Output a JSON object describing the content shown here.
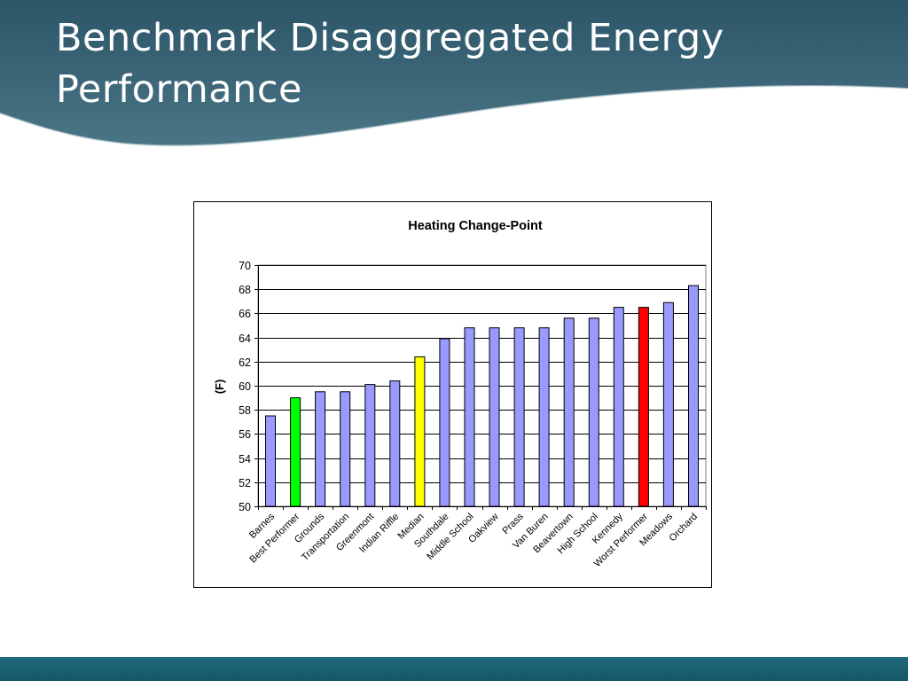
{
  "slide": {
    "title": "Benchmark Disaggregated Energy Performance",
    "colors": {
      "header": "#3b6678",
      "footer": "#17606f"
    }
  },
  "chart_data": {
    "type": "bar",
    "title": "Heating Change-Point",
    "xlabel": "",
    "ylabel": "(F)",
    "ylim": [
      50,
      70
    ],
    "yticks": [
      50,
      52,
      54,
      56,
      58,
      60,
      62,
      64,
      66,
      68,
      70
    ],
    "grid": true,
    "categories": [
      "Barnes",
      "Best Performer",
      "Grounds",
      "Transportation",
      "Greenmont",
      "Indian Riffle",
      "Median",
      "Southdale",
      "Middle School",
      "Oakview",
      "Prass",
      "Van Buren",
      "Beavertown",
      "High School",
      "Kennedy",
      "Worst Performer",
      "Meadows",
      "Orchard"
    ],
    "values": [
      57.5,
      59.0,
      59.5,
      59.5,
      60.1,
      60.4,
      62.4,
      63.9,
      64.8,
      64.8,
      64.8,
      64.8,
      65.6,
      65.6,
      66.5,
      66.5,
      66.9,
      68.3
    ],
    "colors": {
      "default": "#9999ff",
      "Best Performer": "#00ff00",
      "Median": "#ffff00",
      "Worst Performer": "#ff0000"
    }
  }
}
